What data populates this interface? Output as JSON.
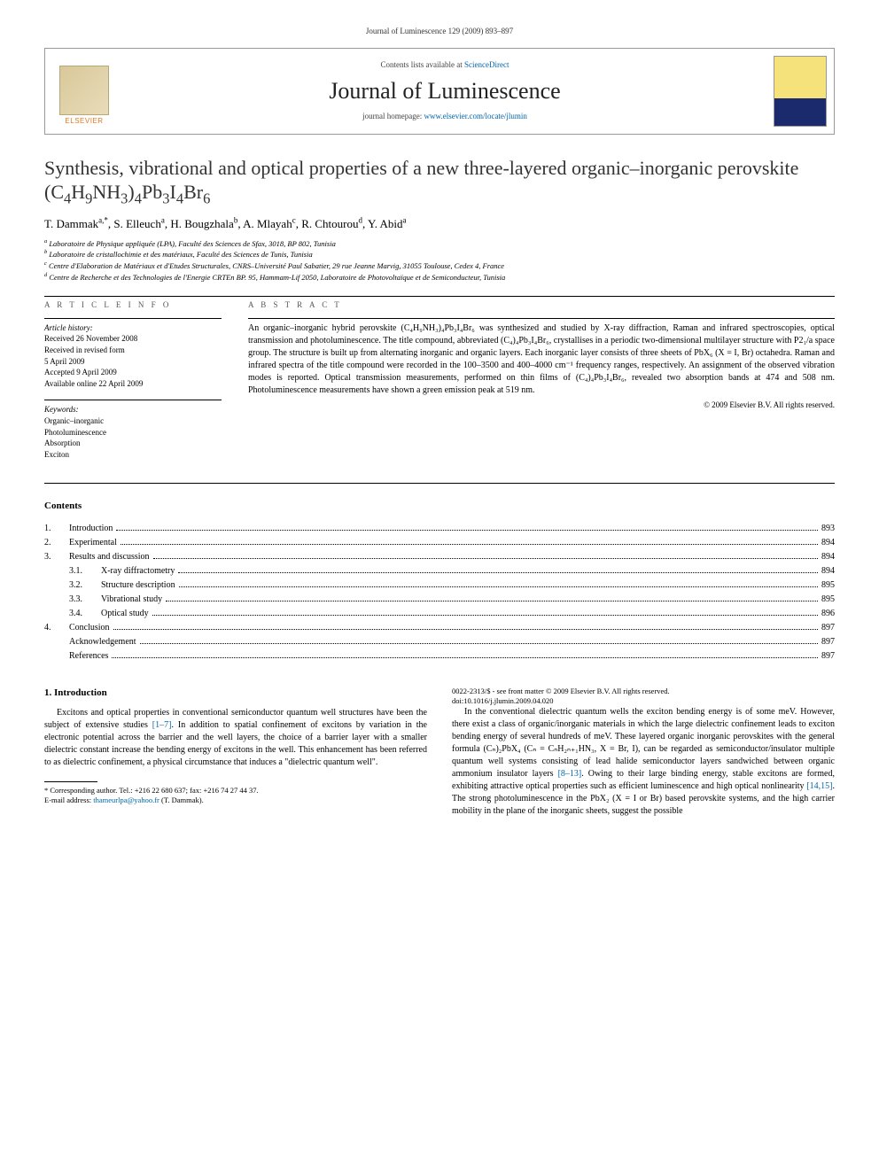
{
  "running_head": "Journal of Luminescence 129 (2009) 893–897",
  "header": {
    "contents_prefix": "Contents lists available at ",
    "contents_link": "ScienceDirect",
    "journal_name": "Journal of Luminescence",
    "homepage_prefix": "journal homepage: ",
    "homepage_url": "www.elsevier.com/locate/jlumin",
    "publisher_name": "ELSEVIER"
  },
  "title_parts": {
    "pre": "Synthesis, vibrational and optical properties of a new three-layered organic–inorganic perovskite (C",
    "s1": "4",
    "m1": "H",
    "s2": "9",
    "m2": "NH",
    "s3": "3",
    "m3": ")",
    "s4": "4",
    "m4": "Pb",
    "s5": "3",
    "m5": "I",
    "s6": "4",
    "m6": "Br",
    "s7": "6"
  },
  "authors_parts": {
    "a1": "T. Dammak",
    "a1sup": "a,",
    "a1star": "*",
    "a2": ", S. Elleuch",
    "a2sup": "a",
    "a3": ", H. Bougzhala",
    "a3sup": "b",
    "a4": ", A. Mlayah",
    "a4sup": "c",
    "a5": ", R. Chtourou",
    "a5sup": "d",
    "a6": ", Y. Abid",
    "a6sup": "a"
  },
  "affiliations": [
    {
      "sup": "a",
      "text": " Laboratoire de Physique appliquée (LPA), Faculté des Sciences de Sfax, 3018, BP 802, Tunisia"
    },
    {
      "sup": "b",
      "text": " Laboratoire de cristallochimie et des matériaux, Faculté des Sciences de Tunis, Tunisia"
    },
    {
      "sup": "c",
      "text": " Centre d'Elaboration de Matériaux et d'Etudes Structurales, CNRS–Université Paul Sabatier, 29 rue Jeanne Marvig, 31055 Toulouse, Cedex 4, France"
    },
    {
      "sup": "d",
      "text": " Centre de Recherche et des Technologies de l'Energie CRTEn BP. 95, Hammam-Lif 2050, Laboratoire de Photovoltaïque et de Semiconducteur, Tunisia"
    }
  ],
  "article_info": {
    "label": "A R T I C L E   I N F O",
    "history_label": "Article history:",
    "history": [
      "Received 26 November 2008",
      "Received in revised form",
      "5 April 2009",
      "Accepted 9 April 2009",
      "Available online 22 April 2009"
    ],
    "keywords_label": "Keywords:",
    "keywords": [
      "Organic–inorganic",
      "Photoluminescence",
      "Absorption",
      "Exciton"
    ]
  },
  "abstract": {
    "label": "A B S T R A C T",
    "text": "An organic–inorganic hybrid perovskite (C₄H₉NH₃)₄Pb₃I₄Br₆ was synthesized and studied by X-ray diffraction, Raman and infrared spectroscopies, optical transmission and photoluminescence. The title compound, abbreviated (C₄)₄Pb₃I₄Br₆, crystallises in a periodic two-dimensional multilayer structure with P2₁/a space group. The structure is built up from alternating inorganic and organic layers. Each inorganic layer consists of three sheets of PbX₆ (X = I, Br) octahedra. Raman and infrared spectra of the title compound were recorded in the 100–3500 and 400–4000 cm⁻¹ frequency ranges, respectively. An assignment of the observed vibration modes is reported. Optical transmission measurements, performed on thin films of (C₄)₄Pb₃I₄Br₆, revealed two absorption bands at 474 and 508 nm. Photoluminescence measurements have shown a green emission peak at 519 nm.",
    "copyright": "© 2009 Elsevier B.V. All rights reserved."
  },
  "contents": {
    "heading": "Contents",
    "items": [
      {
        "num": "1.",
        "label": "Introduction",
        "page": "893",
        "sub": false
      },
      {
        "num": "2.",
        "label": "Experimental",
        "page": "894",
        "sub": false
      },
      {
        "num": "3.",
        "label": "Results and discussion",
        "page": "894",
        "sub": false
      },
      {
        "num": "3.1.",
        "label": "X-ray diffractometry",
        "page": "894",
        "sub": true
      },
      {
        "num": "3.2.",
        "label": "Structure description",
        "page": "895",
        "sub": true
      },
      {
        "num": "3.3.",
        "label": "Vibrational study",
        "page": "895",
        "sub": true
      },
      {
        "num": "3.4.",
        "label": "Optical study",
        "page": "896",
        "sub": true
      },
      {
        "num": "4.",
        "label": "Conclusion",
        "page": "897",
        "sub": false
      },
      {
        "num": "",
        "label": "Acknowledgement",
        "page": "897",
        "sub": false
      },
      {
        "num": "",
        "label": "References",
        "page": "897",
        "sub": false
      }
    ]
  },
  "introduction": {
    "heading": "1. Introduction",
    "para1_pre": "Excitons and optical properties in conventional semiconductor quantum well structures have been the subject of extensive studies ",
    "para1_ref1": "[1–7]",
    "para1_mid": ". In addition to spatial confinement of excitons by variation in the electronic potential across the barrier and the well layers, the choice of a barrier layer with a smaller dielectric constant increase the bending energy of excitons in the well. This enhancement has been referred to as dielectric confinement, a physical circumstance that induces a \"dielectric quantum well\".",
    "para2_pre": "In the conventional dielectric quantum wells the exciton bending energy is of some meV. However, there exist a class of organic/inorganic materials in which the large dielectric confinement leads to exciton bending energy of several hundreds of meV. These layered organic inorganic perovskites with the general formula (Cₙ)₂PbX₄ (Cₙ = CₙH₂ₙ₊₁HN₃, X = Br, I), can be regarded as semiconductor/insulator multiple quantum well systems consisting of lead halide semiconductor layers sandwiched between organic ammonium insulator layers ",
    "para2_ref1": "[8–13]",
    "para2_mid": ". Owing to their large binding energy, stable excitons are formed, exhibiting attractive optical properties such as efficient luminescence and high optical nonlinearity ",
    "para2_ref2": "[14,15]",
    "para2_end": ". The strong photoluminescence in the PbX₂ (X = I or Br) based perovskite systems, and the high carrier mobility in the plane of the inorganic sheets, suggest the possible"
  },
  "footnote": {
    "corr": "* Corresponding author. Tel.: +216 22 680 637; fax: +216 74 27 44 37.",
    "email_label": "E-mail address: ",
    "email": "thameurlpa@yahoo.fr",
    "email_suffix": " (T. Dammak)."
  },
  "footer": {
    "line1": "0022-2313/$ - see front matter © 2009 Elsevier B.V. All rights reserved.",
    "line2": "doi:10.1016/j.jlumin.2009.04.020"
  },
  "colors": {
    "link": "#0066aa",
    "publisher_orange": "#e67817",
    "text": "#000000",
    "rule": "#000000"
  }
}
